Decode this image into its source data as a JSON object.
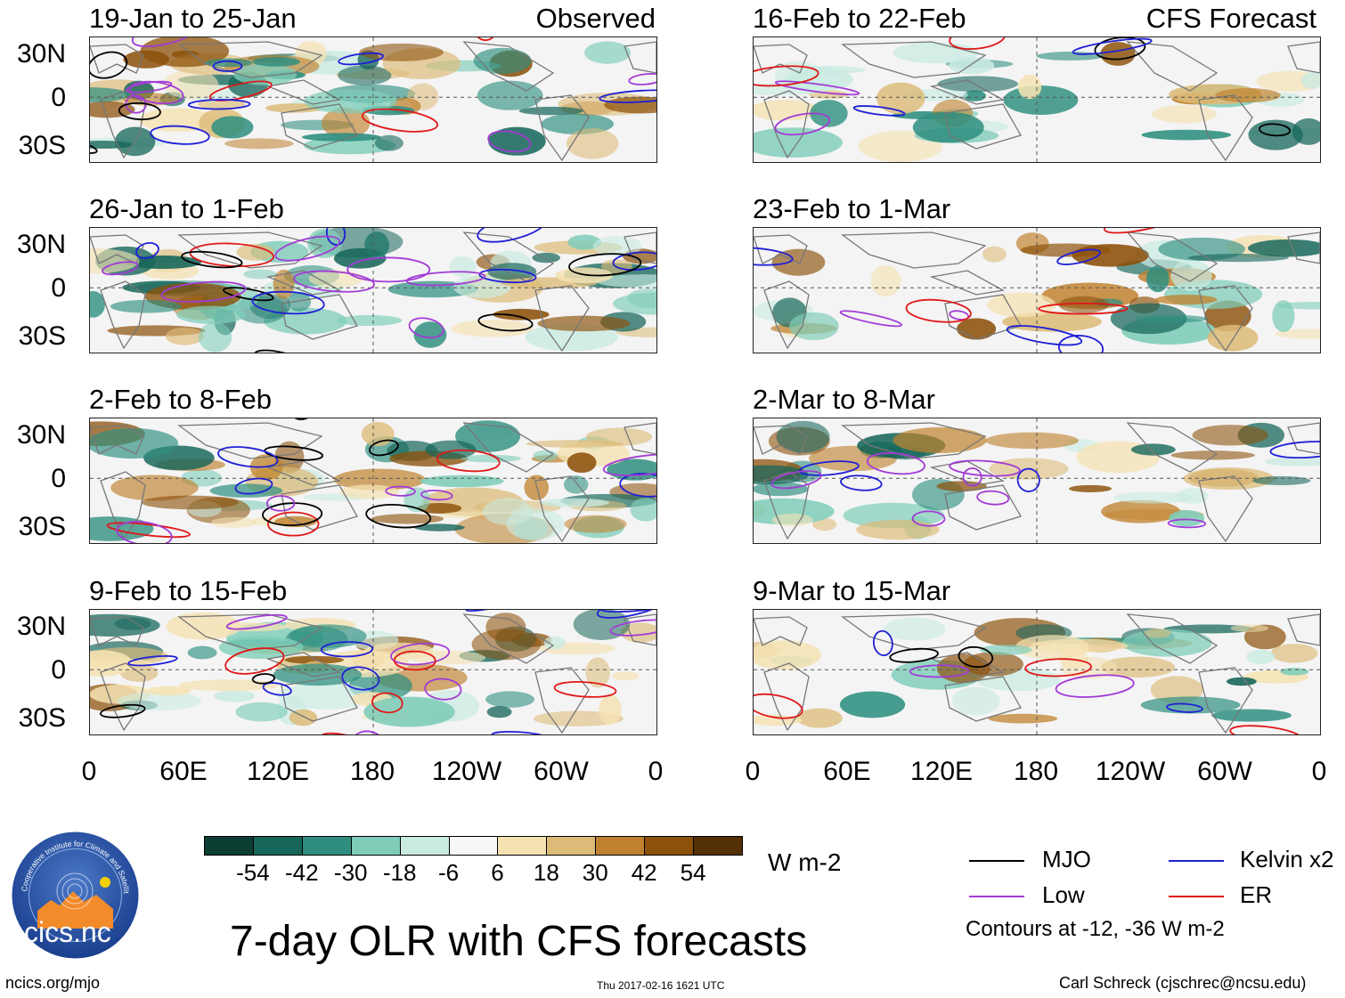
{
  "figure": {
    "title": "7-day OLR with CFS forecasts",
    "units": "W m-2",
    "observed_label": "Observed",
    "forecast_label": "CFS Forecast",
    "site_url": "ncics.org/mjo",
    "timestamp": "Thu 2017-02-16 1621 UTC",
    "author": "Carl Schreck (cjschrec@ncsu.edu)",
    "logo_text": "cics.nc",
    "logo_ring_text": "Cooperative Institute for Climate and Satellites"
  },
  "panels": {
    "observed": [
      {
        "title": "19-Jan to 25-Jan"
      },
      {
        "title": "26-Jan to 1-Feb"
      },
      {
        "title": "2-Feb to 8-Feb"
      },
      {
        "title": "9-Feb to 15-Feb"
      }
    ],
    "forecast": [
      {
        "title": "16-Feb to 22-Feb"
      },
      {
        "title": "23-Feb to 1-Mar"
      },
      {
        "title": "2-Mar to 8-Mar"
      },
      {
        "title": "9-Mar to 15-Mar"
      }
    ]
  },
  "axes": {
    "lat_labels": [
      "30N",
      "0",
      "30S"
    ],
    "lon_labels": [
      "0",
      "60E",
      "120E",
      "180",
      "120W",
      "60W",
      "0"
    ]
  },
  "colorbar": {
    "ticks": [
      "-54",
      "-42",
      "-30",
      "-18",
      "-6",
      "6",
      "18",
      "30",
      "42",
      "54"
    ],
    "colors": [
      "#0c3d33",
      "#16665a",
      "#2e8f80",
      "#7fcdb9",
      "#c9ebe2",
      "#f7f7f7",
      "#f5e2b3",
      "#dcbb78",
      "#bf812d",
      "#8c510a",
      "#543005"
    ]
  },
  "legend": {
    "items": [
      {
        "label": "MJO",
        "color": "#000000"
      },
      {
        "label": "Kelvin x2",
        "color": "#1f1fd6"
      },
      {
        "label": "Low",
        "color": "#a23bd6"
      },
      {
        "label": "ER",
        "color": "#e01818"
      }
    ],
    "note": "Contours at -12, -36 W m-2"
  }
}
